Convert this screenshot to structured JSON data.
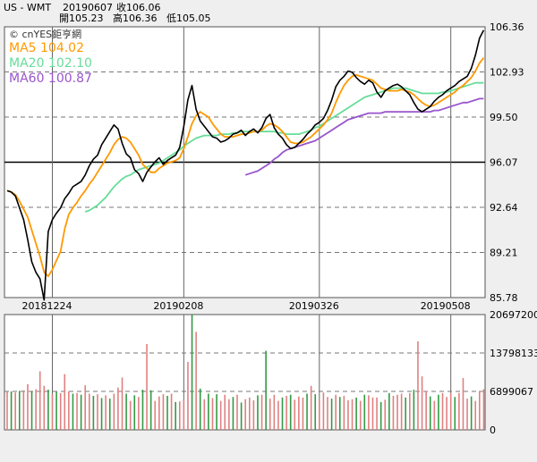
{
  "header": {
    "symbol": "US - WMT",
    "date": "20190607",
    "close": "收106.06",
    "open": "開105.23",
    "high": "高106.36",
    "low": "低105.05"
  },
  "chart_data": [
    {
      "type": "line",
      "name": "price",
      "watermark": "© cnYES鉅亨網",
      "legend": [
        {
          "label": "MA5 104.02",
          "color": "#ff9900"
        },
        {
          "label": "MA20 102.10",
          "color": "#66dd99"
        },
        {
          "label": "MA60 100.87",
          "color": "#9955cc"
        }
      ],
      "ylim": [
        85.78,
        106.36
      ],
      "y_ticks": [
        "106.36",
        "102.93",
        "99.50",
        "96.07",
        "92.64",
        "89.21",
        "85.78"
      ],
      "x_ticks": [
        "20181224",
        "20190208",
        "20190326",
        "20190508"
      ],
      "reference_line": 96.07,
      "grid": "dashed horizontal at tick values, vertical at x ticks",
      "series": [
        {
          "name": "close",
          "color": "#000000",
          "values": [
            93.9,
            93.8,
            93.5,
            92.6,
            91.7,
            90.2,
            88.5,
            87.7,
            87.2,
            85.6,
            90.8,
            91.7,
            92.2,
            92.6,
            93.3,
            93.7,
            94.2,
            94.4,
            94.6,
            95.1,
            95.8,
            96.3,
            96.6,
            97.4,
            97.9,
            98.4,
            98.9,
            98.6,
            97.5,
            96.7,
            96.4,
            95.5,
            95.2,
            94.6,
            95.3,
            95.7,
            96.1,
            96.4,
            95.9,
            96.2,
            96.4,
            96.6,
            97.2,
            98.8,
            100.8,
            101.9,
            100.1,
            99.2,
            98.8,
            98.4,
            98.0,
            97.9,
            97.6,
            97.7,
            97.9,
            98.2,
            98.3,
            98.5,
            98.1,
            98.4,
            98.6,
            98.3,
            98.7,
            99.4,
            99.7,
            98.7,
            98.2,
            97.9,
            97.4,
            97.1,
            97.2,
            97.5,
            97.8,
            98.2,
            98.5,
            98.9,
            99.1,
            99.4,
            100.0,
            100.8,
            101.8,
            102.3,
            102.6,
            103.0,
            102.9,
            102.5,
            102.2,
            102.0,
            102.3,
            102.1,
            101.4,
            101.0,
            101.5,
            101.7,
            101.9,
            102.0,
            101.8,
            101.5,
            101.2,
            100.6,
            100.1,
            99.9,
            100.1,
            100.3,
            100.7,
            101.0,
            101.2,
            101.5,
            101.7,
            101.9,
            102.2,
            102.4,
            102.6,
            103.2,
            104.2,
            105.5,
            106.1
          ]
        },
        {
          "name": "MA5",
          "color": "#ff9900",
          "values": [
            93.9,
            93.8,
            93.6,
            93.1,
            92.5,
            91.9,
            90.9,
            89.9,
            88.9,
            87.7,
            87.4,
            87.9,
            88.6,
            89.3,
            91.0,
            92.1,
            92.6,
            93.0,
            93.5,
            93.9,
            94.4,
            94.8,
            95.3,
            95.8,
            96.3,
            96.8,
            97.4,
            97.8,
            98.0,
            97.9,
            97.6,
            97.1,
            96.6,
            95.9,
            95.6,
            95.3,
            95.3,
            95.6,
            95.8,
            96.0,
            96.1,
            96.2,
            96.4,
            97.1,
            98.0,
            99.0,
            99.6,
            99.9,
            99.7,
            99.5,
            99.0,
            98.6,
            98.2,
            98.0,
            98.0,
            98.0,
            98.1,
            98.2,
            98.2,
            98.3,
            98.4,
            98.4,
            98.5,
            98.8,
            99.0,
            98.9,
            98.7,
            98.4,
            98.0,
            97.6,
            97.5,
            97.5,
            97.6,
            97.8,
            98.0,
            98.3,
            98.6,
            98.9,
            99.3,
            99.8,
            100.6,
            101.3,
            101.9,
            102.3,
            102.6,
            102.7,
            102.6,
            102.5,
            102.4,
            102.3,
            102.0,
            101.7,
            101.6,
            101.5,
            101.5,
            101.5,
            101.6,
            101.5,
            101.4,
            101.2,
            100.9,
            100.6,
            100.4,
            100.3,
            100.4,
            100.6,
            100.8,
            101.0,
            101.2,
            101.4,
            101.7,
            101.9,
            102.2,
            102.5,
            103.0,
            103.6,
            104.0
          ]
        },
        {
          "name": "MA20",
          "color": "#66dd99",
          "values": [
            null,
            null,
            null,
            null,
            null,
            null,
            null,
            null,
            null,
            null,
            null,
            null,
            null,
            null,
            null,
            null,
            null,
            null,
            null,
            92.3,
            92.4,
            92.6,
            92.8,
            93.1,
            93.4,
            93.8,
            94.2,
            94.5,
            94.8,
            95.0,
            95.1,
            95.3,
            95.5,
            95.6,
            95.7,
            95.8,
            95.9,
            96.0,
            96.2,
            96.4,
            96.6,
            96.8,
            97.0,
            97.3,
            97.5,
            97.7,
            97.9,
            98.0,
            98.1,
            98.1,
            98.1,
            98.1,
            98.2,
            98.2,
            98.2,
            98.3,
            98.3,
            98.4,
            98.4,
            98.4,
            98.4,
            98.4,
            98.4,
            98.4,
            98.4,
            98.4,
            98.3,
            98.3,
            98.2,
            98.2,
            98.2,
            98.2,
            98.3,
            98.4,
            98.5,
            98.7,
            98.8,
            99.0,
            99.2,
            99.4,
            99.6,
            99.8,
            100.0,
            100.2,
            100.4,
            100.6,
            100.8,
            101.0,
            101.1,
            101.2,
            101.3,
            101.4,
            101.5,
            101.6,
            101.7,
            101.7,
            101.7,
            101.7,
            101.6,
            101.5,
            101.4,
            101.3,
            101.3,
            101.3,
            101.3,
            101.3,
            101.4,
            101.4,
            101.5,
            101.6,
            101.7,
            101.8,
            101.9,
            102.0,
            102.1,
            102.1,
            102.1
          ]
        },
        {
          "name": "MA60",
          "color": "#9955cc",
          "values": [
            null,
            null,
            null,
            null,
            null,
            null,
            null,
            null,
            null,
            null,
            null,
            null,
            null,
            null,
            null,
            null,
            null,
            null,
            null,
            null,
            null,
            null,
            null,
            null,
            null,
            null,
            null,
            null,
            null,
            null,
            null,
            null,
            null,
            null,
            null,
            null,
            null,
            null,
            null,
            null,
            null,
            null,
            null,
            null,
            null,
            null,
            null,
            null,
            null,
            null,
            null,
            null,
            null,
            null,
            null,
            null,
            null,
            null,
            95.1,
            95.2,
            95.3,
            95.4,
            95.6,
            95.8,
            96.0,
            96.3,
            96.5,
            96.8,
            97.0,
            97.1,
            97.2,
            97.3,
            97.4,
            97.5,
            97.6,
            97.7,
            97.9,
            98.1,
            98.3,
            98.5,
            98.7,
            98.9,
            99.1,
            99.3,
            99.4,
            99.5,
            99.6,
            99.7,
            99.8,
            99.8,
            99.8,
            99.8,
            99.9,
            99.9,
            99.9,
            99.9,
            99.9,
            99.9,
            99.9,
            99.9,
            99.9,
            99.9,
            99.9,
            99.9,
            100.0,
            100.0,
            100.1,
            100.2,
            100.3,
            100.4,
            100.5,
            100.6,
            100.6,
            100.7,
            100.8,
            100.9,
            100.9
          ]
        }
      ]
    },
    {
      "type": "bar",
      "name": "volume",
      "ylim": [
        0,
        20697200
      ],
      "y_ticks": [
        "20697200",
        "13798133",
        "6899067",
        "0"
      ],
      "colors": {
        "up": "#e08080",
        "down": "#339944"
      },
      "values": [
        6800000,
        6900000,
        6700000,
        7000000,
        7100000,
        8200000,
        6900000,
        7300000,
        10500000,
        7900000,
        7200000,
        6400000,
        6800000,
        6600000,
        10000000,
        6900000,
        6500000,
        6600000,
        6300000,
        8000000,
        6500000,
        6100000,
        6400000,
        5700000,
        6200000,
        5600000,
        6500000,
        7600000,
        9400000,
        6500000,
        5200000,
        6200000,
        5900000,
        7200000,
        15400000,
        7100000,
        5200000,
        6000000,
        6400000,
        6100000,
        6500000,
        5000000,
        5100000,
        5400000,
        12200000,
        20700000,
        17600000,
        7400000,
        5500000,
        6500000,
        5700000,
        6400000,
        5200000,
        6300000,
        5500000,
        5900000,
        6300000,
        4900000,
        5500000,
        5800000,
        5300000,
        6200000,
        6300000,
        14200000,
        5600000,
        6300000,
        5200000,
        5800000,
        6100000,
        6300000,
        5400000,
        6000000,
        5800000,
        6500000,
        7900000,
        6400000,
        5300000,
        6700000,
        5900000,
        5600000,
        6300000,
        5900000,
        6100000,
        5300000,
        5500000,
        5800000,
        5200000,
        6300000,
        6200000,
        5800000,
        5800000,
        5000000,
        5400000,
        6600000,
        6100000,
        6300000,
        6500000,
        5800000,
        6600000,
        7200000,
        15900000,
        9600000,
        7000000,
        6000000,
        5200000,
        6300000,
        6600000,
        5900000,
        6600000,
        5900000,
        6600000,
        9300000,
        5600000,
        6000000,
        5200000,
        7000000,
        7300000
      ],
      "up": [
        true,
        false,
        true,
        false,
        true,
        true,
        false,
        true,
        true,
        true,
        false,
        true,
        false,
        true,
        true,
        true,
        false,
        true,
        false,
        true,
        true,
        false,
        true,
        false,
        true,
        false,
        true,
        true,
        true,
        false,
        true,
        false,
        true,
        false,
        true,
        false,
        true,
        true,
        true,
        false,
        true,
        false,
        true,
        true,
        true,
        false,
        true,
        false,
        true,
        false,
        true,
        false,
        true,
        true,
        true,
        false,
        true,
        false,
        true,
        true,
        true,
        false,
        true,
        false,
        true,
        true,
        true,
        false,
        true,
        false,
        true,
        true,
        true,
        false,
        true,
        false,
        true,
        true,
        true,
        false,
        true,
        false,
        true,
        true,
        true,
        false,
        true,
        false,
        true,
        true,
        true,
        false,
        true,
        false,
        true,
        true,
        true,
        false,
        true,
        false,
        true,
        true,
        true,
        false,
        true,
        false,
        true,
        true,
        true,
        false,
        true,
        true,
        true,
        false,
        true,
        true,
        true
      ]
    }
  ]
}
